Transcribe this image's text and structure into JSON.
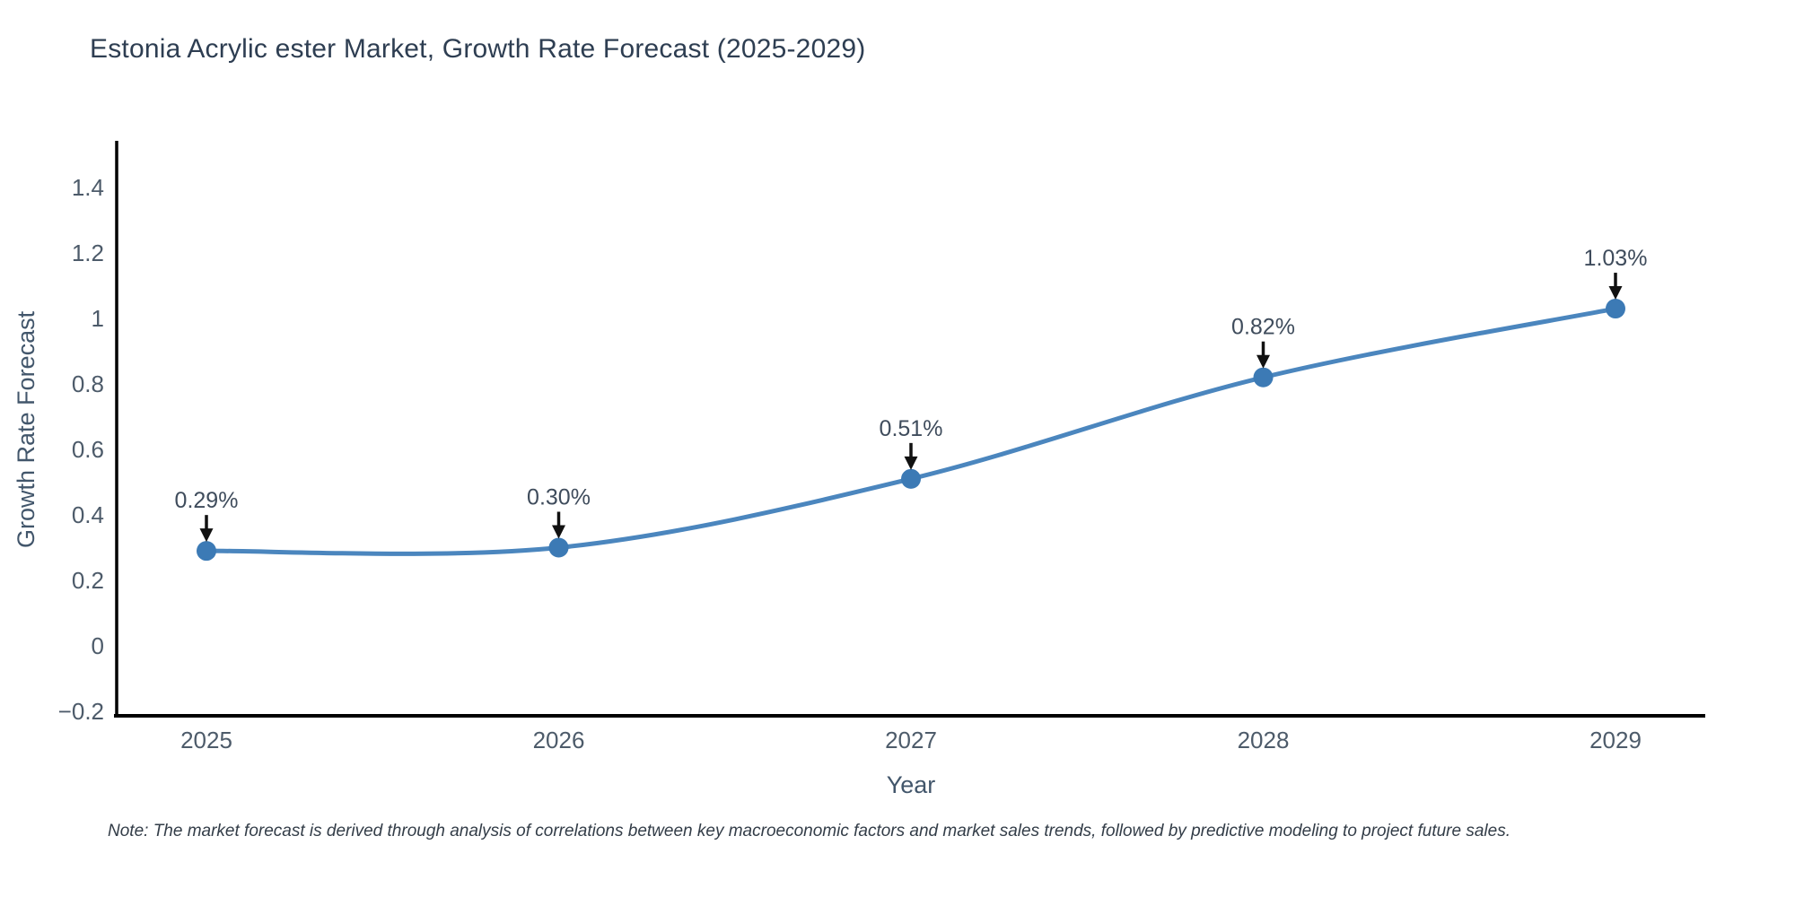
{
  "title": "Estonia Acrylic ester Market, Growth Rate Forecast (2025-2029)",
  "note": "Note: The market forecast is derived through analysis of correlations between key macroeconomic factors and market sales trends, followed by predictive modeling to project future sales.",
  "chart_data": {
    "type": "line",
    "title": "Estonia Acrylic ester Market, Growth Rate Forecast (2025-2029)",
    "xlabel": "Year",
    "ylabel": "Growth Rate Forecast",
    "categories": [
      "2025",
      "2026",
      "2027",
      "2028",
      "2029"
    ],
    "series": [
      {
        "name": "Growth Rate Forecast",
        "values": [
          0.29,
          0.3,
          0.51,
          0.82,
          1.03
        ],
        "point_labels": [
          "0.29%",
          "0.30%",
          "0.51%",
          "0.82%",
          "1.03%"
        ]
      }
    ],
    "y_ticks": [
      -0.2,
      0,
      0.2,
      0.4,
      0.6,
      0.8,
      1,
      1.2,
      1.4
    ],
    "y_tick_labels": [
      "−0.2",
      "0",
      "0.2",
      "0.4",
      "0.6",
      "0.8",
      "1",
      "1.2",
      "1.4"
    ],
    "ylim": [
      -0.2,
      1.55
    ],
    "grid": false,
    "legend": "none",
    "annotations_have_arrows": true,
    "colors": {
      "line": "#4b86be",
      "marker": "#3c7ab5",
      "axis": "#000000",
      "arrow": "#111111",
      "title_text": "#2e3e52",
      "tick_text": "#4d5b6a",
      "axis_label_text": "#42566b",
      "annotation_text": "#3f4c5c",
      "note_text": "#333d48",
      "background": "#ffffff"
    }
  }
}
